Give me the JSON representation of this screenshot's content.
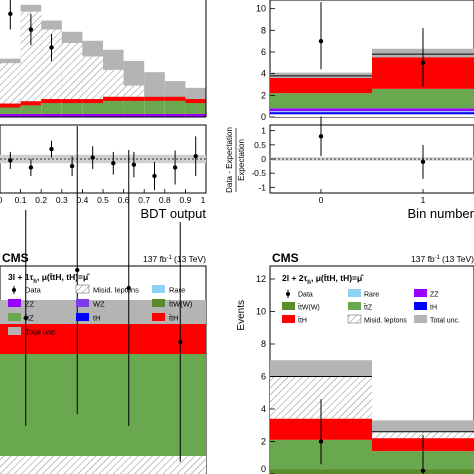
{
  "colors": {
    "total_unc": "#b4b4b4",
    "misid": "#ffffff",
    "ttz": "#6aa84f",
    "tth": "#ff0000",
    "th": "#0000ff",
    "zz": "#9900ff",
    "wz": "#7c3aed",
    "rare": "#8fd3f4",
    "ttw": "#5b8c2a",
    "data": "#000000"
  },
  "chart_data": [
    {
      "type": "bar",
      "panel": "top-left",
      "xlabel": "BDT output",
      "x_ticks": [
        "0",
        "0.1",
        "0.2",
        "0.3",
        "0.4",
        "0.5",
        "0.6",
        "0.7",
        "0.8",
        "0.9",
        "1"
      ],
      "bin_edges": [
        0,
        0.1,
        0.2,
        0.3,
        0.4,
        0.5,
        0.6,
        0.7,
        0.8,
        0.9,
        1.0
      ],
      "stack_top": [
        26,
        50,
        43,
        38,
        34,
        30,
        25,
        20,
        16,
        13
      ],
      "misid_top": [
        24,
        47,
        39,
        33,
        27,
        21,
        14,
        9,
        6,
        4
      ],
      "tth_top": [
        6,
        7,
        8,
        8,
        8,
        9,
        9,
        9,
        9,
        8
      ],
      "data": {
        "x": [
          0.05,
          0.15,
          0.25
        ],
        "y": [
          46,
          39,
          31
        ],
        "err": [
          7,
          7,
          6
        ]
      },
      "ratio": {
        "ylim": [
          -1.2,
          1.2
        ],
        "x": [
          0.05,
          0.15,
          0.25,
          0.35,
          0.45,
          0.55,
          0.65,
          0.75,
          0.85,
          0.95
        ],
        "y": [
          -0.05,
          -0.3,
          0.35,
          -0.25,
          0.05,
          -0.15,
          -0.2,
          -0.6,
          -0.3,
          0.1
        ],
        "err": [
          0.3,
          0.3,
          0.3,
          0.35,
          0.4,
          0.4,
          0.45,
          0.5,
          0.6,
          0.7
        ]
      }
    },
    {
      "type": "bar",
      "panel": "top-right",
      "xlabel": "Bin number",
      "ylabel_ratio": "Data - Expectation\nExpectation",
      "y_ticks": [
        "0",
        "2",
        "4",
        "6",
        "8",
        "10"
      ],
      "x_ticks": [
        "0",
        "1"
      ],
      "ylim": [
        0,
        10.8
      ],
      "bins": [
        {
          "misid": 0.25,
          "th": 0.45,
          "rare": 0.55,
          "zz": 0.8,
          "ttz": 2.2,
          "tth": 3.6,
          "total": 3.8,
          "unc_low": 3.5,
          "unc_high": 4.1
        },
        {
          "misid": 0.25,
          "th": 0.45,
          "rare": 0.55,
          "zz": 0.8,
          "ttz": 2.6,
          "tth": 5.5,
          "total": 5.8,
          "unc_low": 5.3,
          "unc_high": 6.3
        }
      ],
      "data": {
        "x": [
          0,
          1
        ],
        "y": [
          7,
          5
        ],
        "err_up": [
          3.6,
          3.2
        ],
        "err_down": [
          2.6,
          2.2
        ]
      },
      "ratio": {
        "ylim": [
          -1.2,
          1.2
        ],
        "y_ticks": [
          "-1",
          "-0.5",
          "0",
          "0.5",
          "1"
        ],
        "x": [
          0,
          1
        ],
        "y": [
          0.8,
          -0.1
        ],
        "err": [
          0.7,
          0.6
        ]
      }
    },
    {
      "type": "bar",
      "panel": "bottom-left",
      "experiment": "CMS",
      "lumi": "137 fb",
      "lumi_sup": "-1",
      "energy": "(13 TeV)",
      "channel": "3l + 1τ",
      "channel_sub": "h",
      "mu_text": ", μ(t̄tH, tH)=μ̂",
      "legend": [
        {
          "key": "data",
          "label": "Data"
        },
        {
          "key": "misid",
          "label": "Misid. leptons"
        },
        {
          "key": "rare",
          "label": "Rare"
        },
        {
          "key": "zz",
          "label": "ZZ"
        },
        {
          "key": "wz",
          "label": "WZ"
        },
        {
          "key": "ttw",
          "label": "t̄tW(W)"
        },
        {
          "key": "ttz",
          "label": "t̄tZ"
        },
        {
          "key": "th",
          "label": "tH"
        },
        {
          "key": "tth",
          "label": "t̄tH"
        },
        {
          "key": "total_unc",
          "label": "Total unc."
        }
      ],
      "bins": [
        {
          "misid": 0.15,
          "ttz": 1.0,
          "tth": 1.25,
          "total": 1.45
        },
        {
          "misid": 0.15,
          "ttz": 1.0,
          "tth": 1.25,
          "total": 1.45
        },
        {
          "misid": 0.15,
          "ttz": 1.0,
          "tth": 1.25,
          "total": 1.45
        },
        {
          "misid": 0.15,
          "ttz": 1.0,
          "tth": 1.25,
          "total": 1.45
        }
      ],
      "data": {
        "x": [
          0.5,
          1.5,
          2.5,
          3.5
        ],
        "y": [
          1.3,
          1.7,
          1.55,
          1.1
        ],
        "err": [
          0.9,
          1.2,
          1.15,
          1.0
        ]
      }
    },
    {
      "type": "bar",
      "panel": "bottom-right",
      "experiment": "CMS",
      "lumi": "137 fb",
      "lumi_sup": "-1",
      "energy": "(13 TeV)",
      "channel": "2l + 2τ",
      "channel_sub": "h",
      "mu_text": ", μ(t̄tH, tH)=μ̂",
      "ylabel": "Events",
      "y_ticks": [
        "0",
        "2",
        "4",
        "6",
        "8",
        "10",
        "12"
      ],
      "ylim": [
        0,
        12.8
      ],
      "legend": [
        {
          "key": "data",
          "label": "Data"
        },
        {
          "key": "rare",
          "label": "Rare"
        },
        {
          "key": "zz",
          "label": "ZZ"
        },
        {
          "key": "ttw",
          "label": "t̄tW(W)"
        },
        {
          "key": "ttz",
          "label": "t̄tZ"
        },
        {
          "key": "th",
          "label": "tH"
        },
        {
          "key": "tth",
          "label": "t̄tH"
        },
        {
          "key": "misid",
          "label": "Misid. leptons"
        },
        {
          "key": "total_unc",
          "label": "Total unc."
        }
      ],
      "bins": [
        {
          "ttw": 0.3,
          "ttz": 2.1,
          "tth": 3.4,
          "misid": 6.0,
          "unc_low": 5.2,
          "unc_high": 7.0
        },
        {
          "ttw": 0.3,
          "ttz": 1.4,
          "tth": 2.2,
          "misid": 2.6,
          "unc_low": 2.2,
          "unc_high": 3.3
        }
      ],
      "data": {
        "x": [
          0.5,
          1.5
        ],
        "y": [
          2,
          0.2
        ],
        "err_up": [
          2.6,
          2.2
        ],
        "err_down": [
          1.4,
          0.2
        ]
      }
    }
  ]
}
